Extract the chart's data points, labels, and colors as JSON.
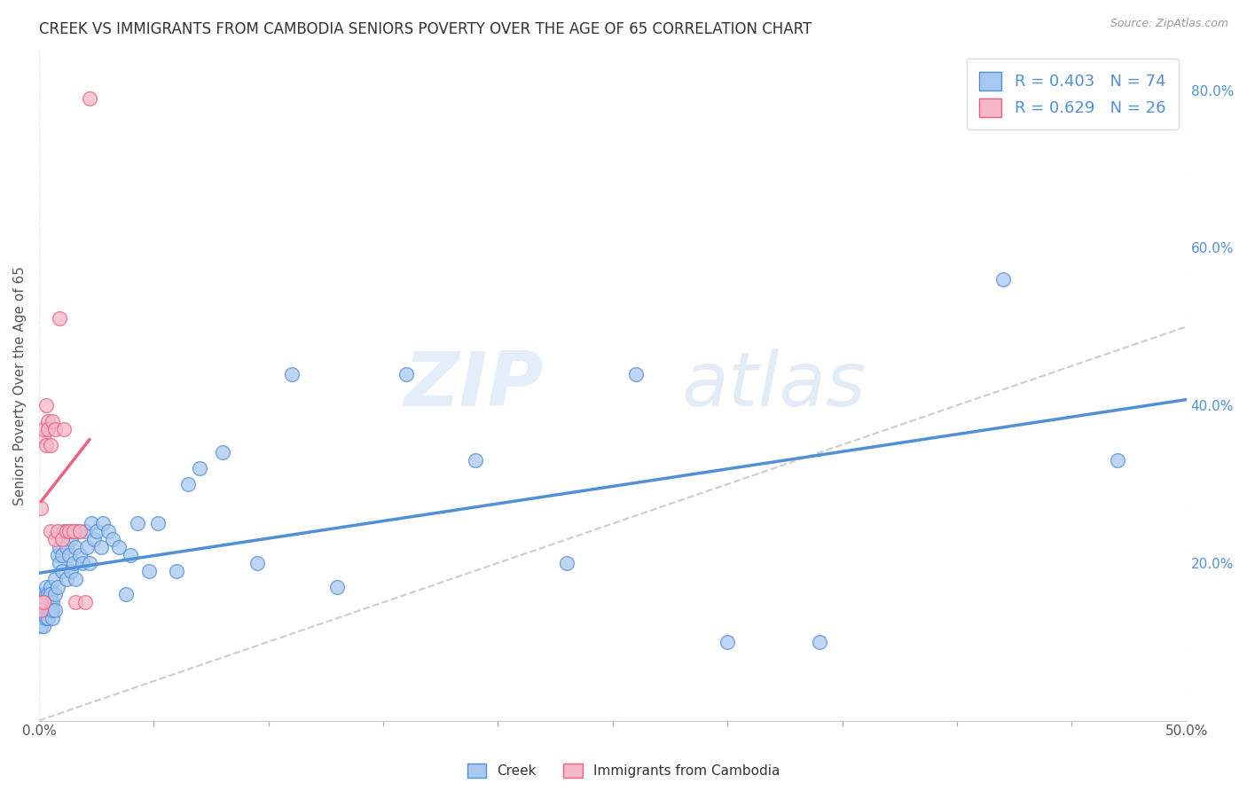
{
  "title": "CREEK VS IMMIGRANTS FROM CAMBODIA SENIORS POVERTY OVER THE AGE OF 65 CORRELATION CHART",
  "source": "Source: ZipAtlas.com",
  "ylabel": "Seniors Poverty Over the Age of 65",
  "xlim": [
    0.0,
    0.5
  ],
  "ylim": [
    0.0,
    0.85
  ],
  "xtick_positions": [
    0.0,
    0.5
  ],
  "xticklabels": [
    "0.0%",
    "50.0%"
  ],
  "yticks_right": [
    0.2,
    0.4,
    0.6,
    0.8
  ],
  "yticklabels_right": [
    "20.0%",
    "40.0%",
    "60.0%",
    "80.0%"
  ],
  "creek_color": "#a8c8f0",
  "cambodia_color": "#f4b8c8",
  "creek_line_color": "#5090d8",
  "cambodia_line_color": "#f06080",
  "diagonal_color": "#cccccc",
  "R_creek": 0.403,
  "N_creek": 74,
  "R_cambodia": 0.629,
  "N_cambodia": 26,
  "legend_label_creek": "Creek",
  "legend_label_cambodia": "Immigrants from Cambodia",
  "creek_x": [
    0.001,
    0.001,
    0.001,
    0.002,
    0.002,
    0.002,
    0.002,
    0.003,
    0.003,
    0.003,
    0.003,
    0.004,
    0.004,
    0.004,
    0.005,
    0.005,
    0.005,
    0.005,
    0.006,
    0.006,
    0.006,
    0.007,
    0.007,
    0.007,
    0.008,
    0.008,
    0.009,
    0.009,
    0.01,
    0.01,
    0.011,
    0.012,
    0.012,
    0.013,
    0.014,
    0.014,
    0.015,
    0.015,
    0.016,
    0.016,
    0.017,
    0.018,
    0.019,
    0.02,
    0.021,
    0.022,
    0.023,
    0.024,
    0.025,
    0.027,
    0.028,
    0.03,
    0.032,
    0.035,
    0.038,
    0.04,
    0.043,
    0.048,
    0.052,
    0.06,
    0.065,
    0.07,
    0.08,
    0.095,
    0.11,
    0.13,
    0.16,
    0.19,
    0.23,
    0.26,
    0.3,
    0.34,
    0.42,
    0.47
  ],
  "creek_y": [
    0.14,
    0.16,
    0.12,
    0.14,
    0.15,
    0.13,
    0.12,
    0.16,
    0.15,
    0.13,
    0.17,
    0.14,
    0.16,
    0.13,
    0.15,
    0.14,
    0.17,
    0.16,
    0.13,
    0.15,
    0.14,
    0.16,
    0.14,
    0.18,
    0.17,
    0.21,
    0.22,
    0.2,
    0.21,
    0.19,
    0.24,
    0.22,
    0.18,
    0.21,
    0.23,
    0.19,
    0.24,
    0.2,
    0.22,
    0.18,
    0.24,
    0.21,
    0.2,
    0.24,
    0.22,
    0.2,
    0.25,
    0.23,
    0.24,
    0.22,
    0.25,
    0.24,
    0.23,
    0.22,
    0.16,
    0.21,
    0.25,
    0.19,
    0.25,
    0.19,
    0.3,
    0.32,
    0.34,
    0.2,
    0.44,
    0.17,
    0.44,
    0.33,
    0.2,
    0.44,
    0.1,
    0.1,
    0.56,
    0.33
  ],
  "cambodia_x": [
    0.001,
    0.001,
    0.001,
    0.002,
    0.002,
    0.002,
    0.003,
    0.003,
    0.004,
    0.004,
    0.005,
    0.005,
    0.006,
    0.007,
    0.007,
    0.008,
    0.009,
    0.01,
    0.011,
    0.012,
    0.013,
    0.015,
    0.016,
    0.018,
    0.02,
    0.022
  ],
  "cambodia_y": [
    0.27,
    0.15,
    0.14,
    0.15,
    0.36,
    0.37,
    0.35,
    0.4,
    0.38,
    0.37,
    0.35,
    0.24,
    0.38,
    0.23,
    0.37,
    0.24,
    0.51,
    0.23,
    0.37,
    0.24,
    0.24,
    0.24,
    0.15,
    0.24,
    0.15,
    0.79
  ],
  "watermark_zip": "ZIP",
  "watermark_atlas": "atlas",
  "background_color": "#ffffff",
  "grid_color": "#e8e8e8",
  "title_fontsize": 12,
  "axis_label_fontsize": 11,
  "tick_fontsize": 11,
  "legend_fontsize": 13
}
